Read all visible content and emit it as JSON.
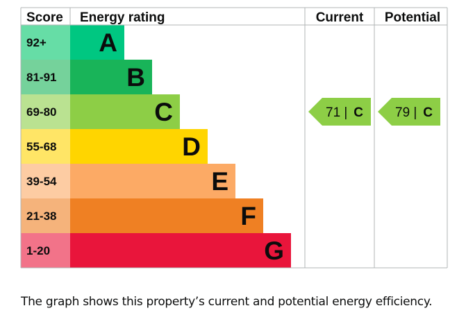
{
  "headers": {
    "score": "Score",
    "rating": "Energy rating",
    "current": "Current",
    "potential": "Potential"
  },
  "chart_data": {
    "type": "bar",
    "categories": [
      "A",
      "B",
      "C",
      "D",
      "E",
      "F",
      "G"
    ],
    "score_ranges": [
      "92+",
      "81-91",
      "69-80",
      "55-68",
      "39-54",
      "21-38",
      "1-20"
    ],
    "colors": [
      "#00c781",
      "#19b459",
      "#8dce46",
      "#ffd500",
      "#fcaa65",
      "#ef8023",
      "#e9153b"
    ],
    "score_bg_colors": [
      "#66dda6",
      "#75d29b",
      "#bae291",
      "#ffe566",
      "#fdcca3",
      "#f5b37b",
      "#f27389"
    ],
    "current": {
      "score": 71,
      "band": "C",
      "label": "71 |",
      "letter": "C"
    },
    "potential": {
      "score": 79,
      "band": "C",
      "label": "79 |",
      "letter": "C"
    }
  },
  "caption": "The graph shows this property’s current and potential energy efficiency."
}
